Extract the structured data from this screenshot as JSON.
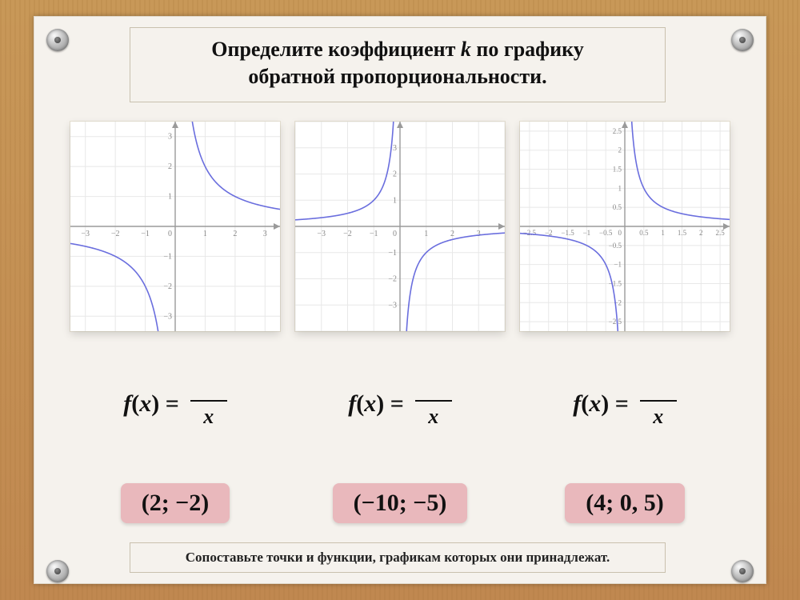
{
  "colors": {
    "background_wood": "#c89858",
    "panel_bg": "#f5f2ed",
    "panel_border": "#c9c0ae",
    "pill_bg": "#e9b8bc",
    "curve_color": "#6a6ede",
    "grid_color": "#e8e8e8",
    "axis_color": "#9a9a9a",
    "tick_label_color": "#888888"
  },
  "title": {
    "line1_pre": "Определите коэффициент ",
    "line1_var": "k",
    "line1_post": " по графику",
    "line2": "обратной пропорциональности."
  },
  "charts": [
    {
      "k": 2,
      "xlim": [
        -3.5,
        3.5
      ],
      "ylim": [
        -3.5,
        3.5
      ],
      "ticks_x": [
        -3,
        -2,
        -1,
        1,
        2,
        3
      ],
      "ticks_y": [
        -3,
        -2,
        -1,
        1,
        2,
        3
      ],
      "tick_fontsize": 10,
      "grid_step": 1,
      "line_width": 1.6
    },
    {
      "k": -1,
      "xlim": [
        -4,
        4
      ],
      "ylim": [
        -4,
        4
      ],
      "ticks_x": [
        -3,
        -2,
        -1,
        1,
        2,
        3
      ],
      "ticks_y": [
        -3,
        -2,
        -1,
        1,
        2,
        3
      ],
      "tick_fontsize": 10,
      "grid_step": 1,
      "line_width": 1.6
    },
    {
      "k": 0.5,
      "xlim": [
        -2.75,
        2.75
      ],
      "ylim": [
        -2.75,
        2.75
      ],
      "ticks_x": [
        -2.5,
        -2,
        -1.5,
        -1,
        -0.5,
        0.5,
        1,
        1.5,
        2,
        2.5
      ],
      "ticks_y": [
        -2.5,
        -2,
        -1.5,
        -1,
        -0.5,
        0.5,
        1,
        1.5,
        2,
        2.5
      ],
      "tick_fontsize": 9,
      "grid_step": 0.5,
      "line_width": 1.6
    }
  ],
  "formulas": [
    {
      "lhs_f": "f",
      "lhs_x": "x",
      "denominator": "x"
    },
    {
      "lhs_f": "f",
      "lhs_x": "x",
      "denominator": "x"
    },
    {
      "lhs_f": "f",
      "lhs_x": "x",
      "denominator": "x"
    }
  ],
  "points": [
    "(2; −2)",
    "(−10; −5)",
    "(4; 0, 5)"
  ],
  "footer": "Сопоставьте точки и функции, графикам которых они принадлежат."
}
